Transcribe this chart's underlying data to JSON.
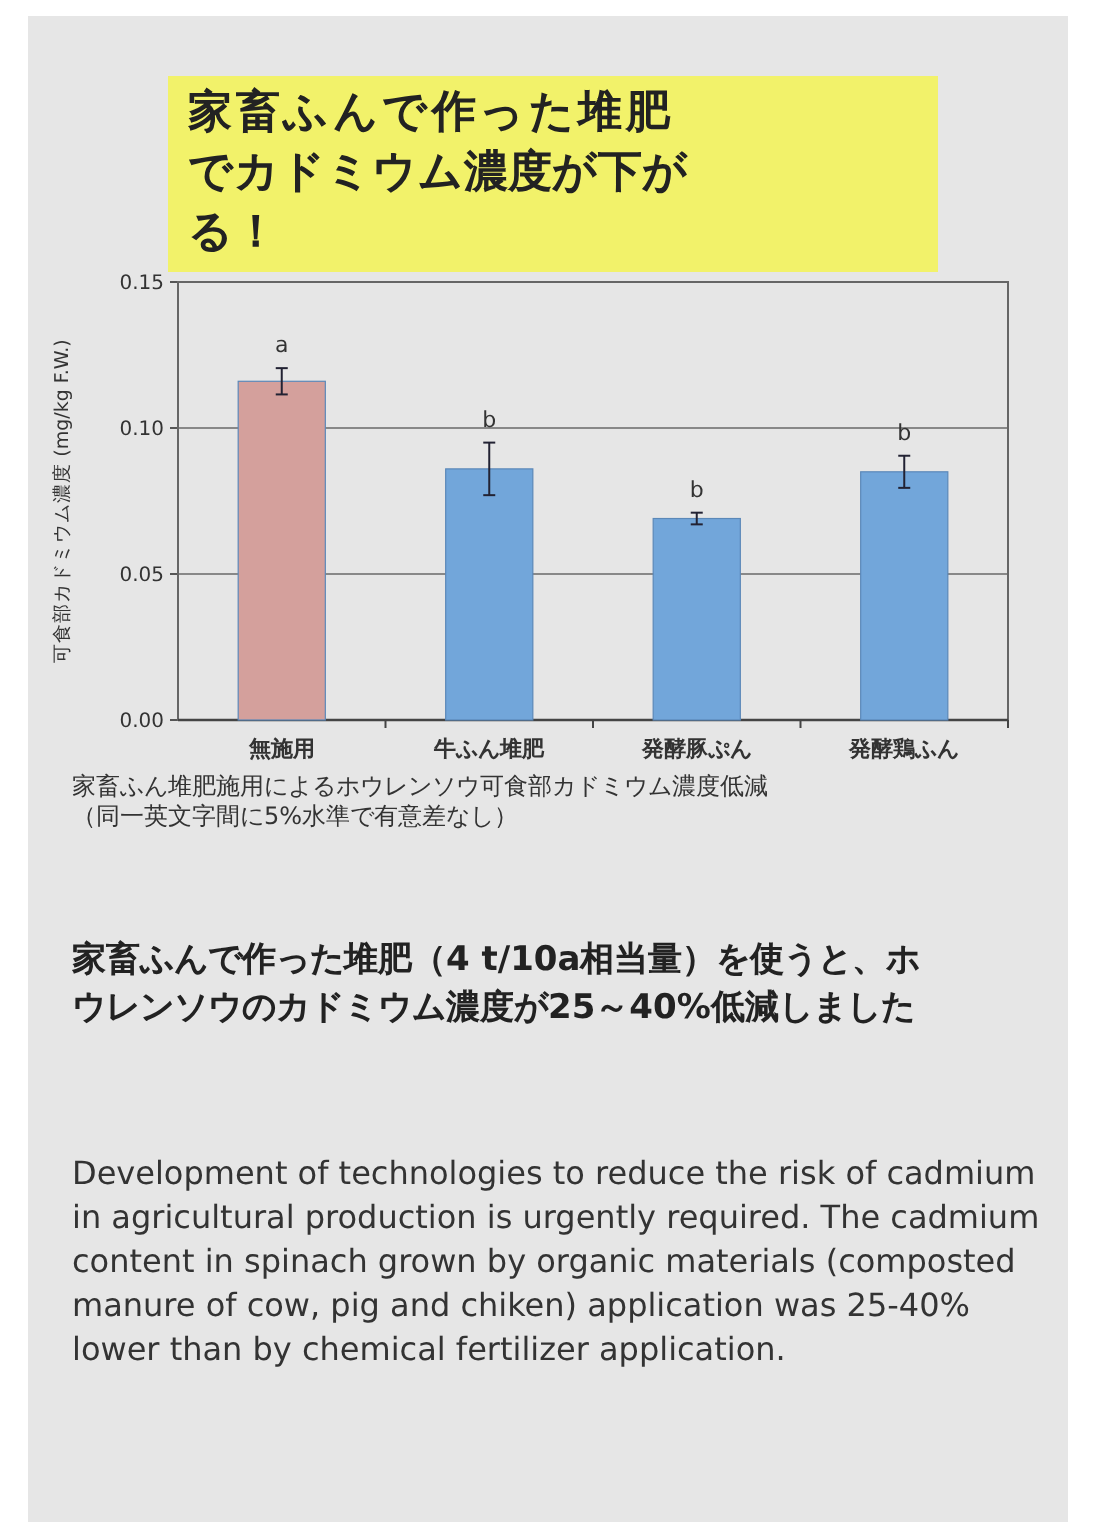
{
  "chart_data": {
    "type": "bar",
    "title": "家畜ふんで作った堆肥でカドミウム濃度が下がる！",
    "ylabel": "可食部カドミウム濃度 (mg/kg F.W.)",
    "categories": [
      "無施用",
      "牛ふん堆肥",
      "発酵豚ぷん",
      "発酵鶏ふん"
    ],
    "values": [
      0.116,
      0.086,
      0.069,
      0.085
    ],
    "colors": [
      "#d4a09c",
      "#72a6da",
      "#72a6da",
      "#72a6da"
    ],
    "errors": [
      0.0045,
      0.009,
      0.002,
      0.0055
    ],
    "ylim": [
      0,
      0.15
    ],
    "yticks": [
      {
        "value": 0,
        "label": "0.00"
      },
      {
        "value": 0.05,
        "label": "0.05"
      },
      {
        "value": 0.1,
        "label": "0.10"
      },
      {
        "value": 0.15,
        "label": "0.15"
      }
    ],
    "grid": "y",
    "annotations": [
      "a",
      "b",
      "b",
      "b",
      "家畜ふん堆肥施用によるホウレンソウ可食部カドミウム濃度低減（同一英文字間に5%水準で有意差なし）",
      "家畜ふんで作った堆肥（4 t/10a相当量）を使うと、ホウレンソウのカドミウム濃度が25～40%低減しました",
      "Development of technologies to reduce the risk of cadmium in agricultural production is urgently required. The cadmium content in spinach grown by organic materials (composted manure of cow, pig and chiken) application was 25-40% lower than by chemical fertilizer application."
    ]
  }
}
